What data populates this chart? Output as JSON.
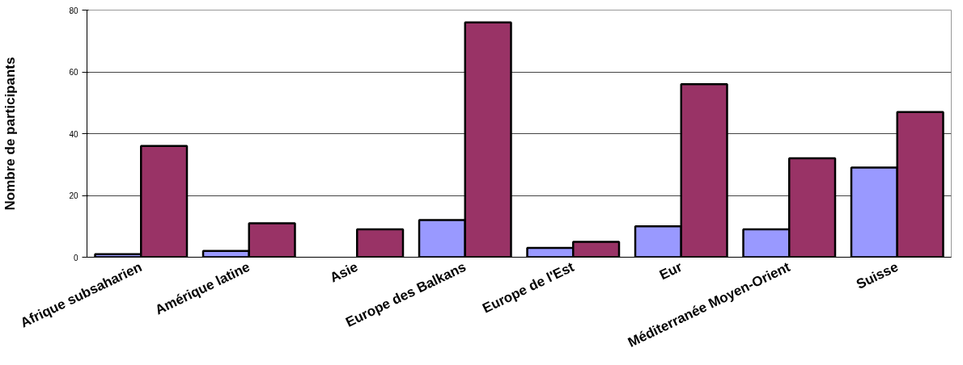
{
  "chart_data": {
    "type": "bar",
    "ylabel": "Nombre de participants",
    "categories": [
      "Afrique subsaharien",
      "Amérique latine",
      "Asie",
      "Europe des Balkans",
      "Europe de l'Est",
      "Eur",
      "Méditerranée Moyen-Orient",
      "Suisse"
    ],
    "series": [
      {
        "color": "#9999ff",
        "values": [
          1,
          2,
          null,
          12,
          3,
          10,
          9,
          29
        ]
      },
      {
        "color": "#993366",
        "values": [
          36,
          11,
          9,
          76,
          5,
          56,
          32,
          47
        ]
      }
    ],
    "ylim": [
      0,
      80
    ],
    "yticks": [
      0,
      20,
      40,
      60,
      80
    ],
    "grid": "y"
  }
}
